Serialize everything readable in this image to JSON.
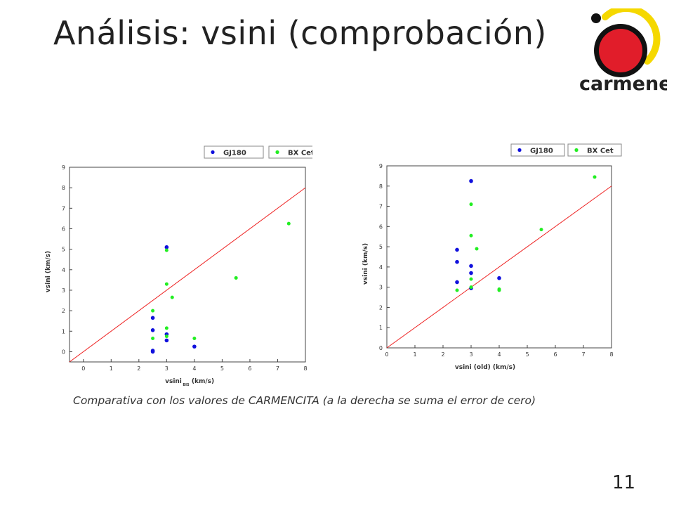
{
  "slide": {
    "title": "Análisis: vsini (comprobación)",
    "caption": "Comparativa con los valores de CARMENCITA (a la derecha se suma el error de cero)",
    "page_number": "11",
    "logo_text": "carmenes"
  },
  "colors": {
    "gj180": "#1010dd",
    "bxcet": "#22ee22",
    "line": "#ee2222",
    "logo_red": "#e11d2a",
    "logo_yellow": "#f5d800"
  },
  "chart_data": [
    {
      "type": "scatter",
      "xlabel": "vsini",
      "xlabel_sub": "BIS",
      "xlabel_unit": "(km/s)",
      "ylabel": "vsini (km/s)",
      "xlim": [
        -0.5,
        8
      ],
      "ylim": [
        -0.5,
        9
      ],
      "xticks": [
        0,
        1,
        2,
        3,
        4,
        5,
        6,
        7,
        8
      ],
      "yticks": [
        0,
        1,
        2,
        3,
        4,
        5,
        6,
        7,
        8,
        9
      ],
      "reference_line": {
        "x": [
          -0.5,
          8
        ],
        "y": [
          -0.5,
          8
        ]
      },
      "legend": [
        "GJ180",
        "BX Cet"
      ],
      "series": [
        {
          "name": "GJ180",
          "points": [
            [
              3.0,
              5.1
            ],
            [
              2.5,
              1.65
            ],
            [
              2.5,
              1.05
            ],
            [
              3.0,
              0.85
            ],
            [
              3.0,
              0.55
            ],
            [
              2.5,
              0.05
            ],
            [
              2.5,
              0.0
            ],
            [
              4.0,
              0.25
            ]
          ]
        },
        {
          "name": "BX Cet",
          "points": [
            [
              7.4,
              6.25
            ],
            [
              5.5,
              3.6
            ],
            [
              3.0,
              4.95
            ],
            [
              3.0,
              3.3
            ],
            [
              3.2,
              2.65
            ],
            [
              2.5,
              2.0
            ],
            [
              3.0,
              1.15
            ],
            [
              3.0,
              0.75
            ],
            [
              2.5,
              0.65
            ],
            [
              4.0,
              0.65
            ]
          ]
        }
      ]
    },
    {
      "type": "scatter",
      "xlabel": "vsini (old) (km/s)",
      "ylabel": "vsini (km/s)",
      "xlim": [
        0,
        8
      ],
      "ylim": [
        0,
        9
      ],
      "xticks": [
        0,
        1,
        2,
        3,
        4,
        5,
        6,
        7,
        8
      ],
      "yticks": [
        0,
        1,
        2,
        3,
        4,
        5,
        6,
        7,
        8,
        9
      ],
      "reference_line": {
        "x": [
          0,
          8
        ],
        "y": [
          0,
          8
        ]
      },
      "legend": [
        "GJ180",
        "BX Cet"
      ],
      "series": [
        {
          "name": "GJ180",
          "points": [
            [
              3.0,
              8.25
            ],
            [
              2.5,
              4.85
            ],
            [
              2.5,
              4.25
            ],
            [
              3.0,
              4.05
            ],
            [
              3.0,
              3.7
            ],
            [
              2.5,
              3.25
            ],
            [
              4.0,
              3.45
            ],
            [
              3.0,
              2.95
            ]
          ]
        },
        {
          "name": "BX Cet",
          "points": [
            [
              7.4,
              8.45
            ],
            [
              3.0,
              7.1
            ],
            [
              3.0,
              5.55
            ],
            [
              5.5,
              5.85
            ],
            [
              3.2,
              4.9
            ],
            [
              3.0,
              3.4
            ],
            [
              2.5,
              2.85
            ],
            [
              3.0,
              3.0
            ],
            [
              4.0,
              2.9
            ],
            [
              4.0,
              2.85
            ]
          ]
        }
      ]
    }
  ]
}
